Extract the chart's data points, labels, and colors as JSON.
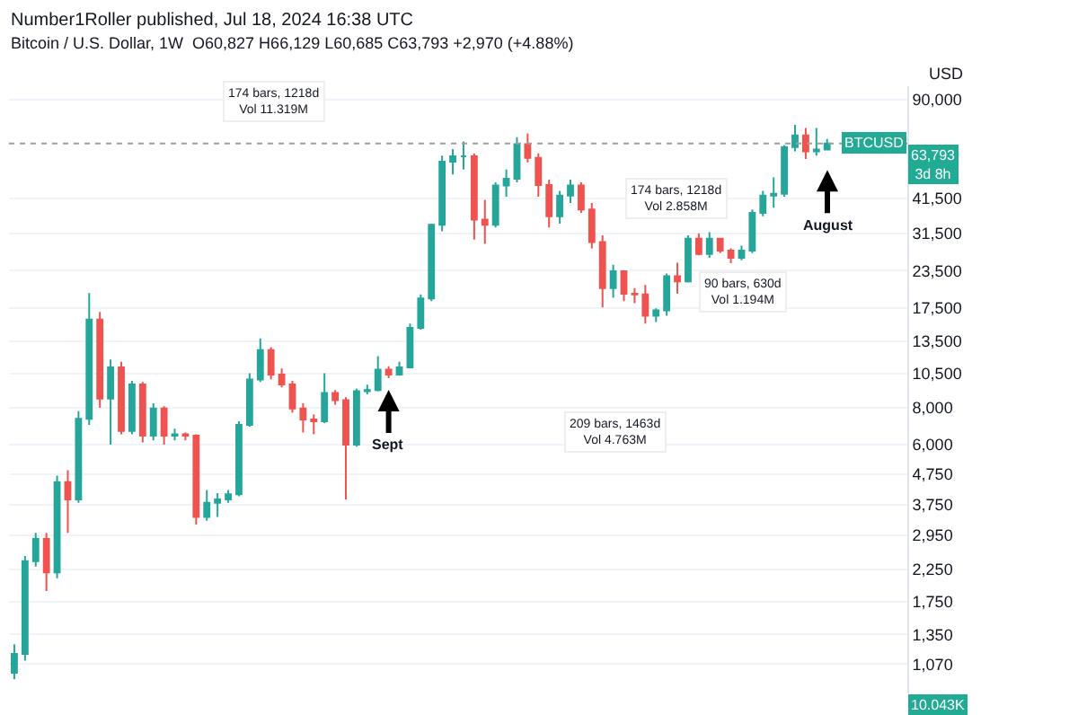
{
  "chart_data": {
    "type": "candlestick",
    "title": "Number1Roller published, Jul 18, 2024 16:38 UTC",
    "subtitle": "Bitcoin / U.S. Dollar, 1W  O60,827 H66,129 L60,685 C63,793 +2,970 (+4.88%)",
    "ylabel": "USD",
    "categories": [
      null,
      null,
      null,
      null,
      null,
      null,
      null,
      null,
      null,
      null,
      null,
      null,
      null,
      null,
      null,
      null,
      null,
      null,
      null,
      null,
      null,
      null,
      null,
      null,
      null,
      null,
      null,
      null,
      null,
      null,
      null,
      null,
      null,
      null,
      null,
      null,
      null,
      null,
      null,
      null,
      null,
      null,
      null,
      null,
      null,
      null,
      null,
      null,
      null,
      null,
      null,
      null,
      null,
      null,
      null,
      null,
      null,
      null,
      null,
      null,
      null,
      null,
      null,
      null,
      null,
      null,
      null,
      null,
      null,
      null,
      null,
      null,
      null,
      null,
      null,
      null,
      null
    ],
    "ohlc": [
      [
        1000,
        1250,
        950,
        1160
      ],
      [
        1160,
        2500,
        1100,
        2400
      ],
      [
        2400,
        3000,
        2300,
        2860
      ],
      [
        2860,
        3000,
        1900,
        2200
      ],
      [
        2200,
        4700,
        2100,
        4470
      ],
      [
        4470,
        4900,
        3000,
        3900
      ],
      [
        3900,
        7800,
        3800,
        7340
      ],
      [
        7340,
        19700,
        7000,
        16000
      ],
      [
        16000,
        17000,
        8000,
        8600
      ],
      [
        8600,
        11700,
        6000,
        11000
      ],
      [
        11000,
        11500,
        6500,
        6680
      ],
      [
        6680,
        9900,
        6500,
        9620
      ],
      [
        9620,
        9800,
        6100,
        6430
      ],
      [
        6430,
        8300,
        6200,
        7960
      ],
      [
        7960,
        8100,
        6000,
        6430
      ],
      [
        6430,
        6800,
        6200,
        6500
      ],
      [
        6500,
        6600,
        6200,
        6430
      ],
      [
        6430,
        6500,
        3200,
        3400
      ],
      [
        3400,
        4200,
        3300,
        3800
      ],
      [
        3800,
        4100,
        3400,
        3900
      ],
      [
        3900,
        4200,
        3800,
        4060
      ],
      [
        4060,
        7200,
        4000,
        7000
      ],
      [
        7000,
        10500,
        6900,
        10000
      ],
      [
        10000,
        13800,
        9800,
        12600
      ],
      [
        12600,
        12900,
        10000,
        10400
      ],
      [
        10400,
        10900,
        9400,
        9620
      ],
      [
        9620,
        9900,
        7700,
        7960
      ],
      [
        7960,
        8300,
        6600,
        7300
      ],
      [
        7300,
        7600,
        6500,
        7200
      ],
      [
        7200,
        10500,
        7100,
        9000
      ],
      [
        9000,
        9200,
        8200,
        8500
      ],
      [
        8500,
        8700,
        3900,
        6000
      ],
      [
        6000,
        9300,
        5900,
        9120
      ],
      [
        9120,
        9600,
        8900,
        9200
      ],
      [
        9200,
        12000,
        9100,
        10800
      ],
      [
        10800,
        11100,
        10100,
        10400
      ],
      [
        10400,
        11500,
        10300,
        11000
      ],
      [
        11000,
        15500,
        10900,
        15000
      ],
      [
        15000,
        19500,
        14800,
        18900
      ],
      [
        18900,
        34000,
        18500,
        33700
      ],
      [
        33700,
        58000,
        32000,
        55300
      ],
      [
        55300,
        61000,
        50000,
        57700
      ],
      [
        57700,
        64800,
        52000,
        57700
      ],
      [
        57700,
        59000,
        30000,
        35100
      ],
      [
        35100,
        41000,
        29000,
        33700
      ],
      [
        33700,
        47000,
        33000,
        45900
      ],
      [
        45900,
        52000,
        42000,
        48400
      ],
      [
        48400,
        67000,
        47000,
        63400
      ],
      [
        63400,
        69000,
        55000,
        57000
      ],
      [
        57000,
        59000,
        42000,
        46000
      ],
      [
        46000,
        48000,
        33000,
        36000
      ],
      [
        36000,
        44000,
        34000,
        42400
      ],
      [
        42400,
        48000,
        40000,
        45900
      ],
      [
        45900,
        47000,
        37000,
        38000
      ],
      [
        38000,
        40000,
        28000,
        29400
      ],
      [
        29400,
        31000,
        17600,
        20500
      ],
      [
        20500,
        24600,
        19000,
        23400
      ],
      [
        23400,
        23500,
        18500,
        19600
      ],
      [
        19600,
        20500,
        18200,
        19500
      ],
      [
        19500,
        21000,
        15500,
        16500
      ],
      [
        16500,
        17500,
        15700,
        17200
      ],
      [
        17200,
        23000,
        16500,
        22500
      ],
      [
        22500,
        25000,
        19600,
        21600
      ],
      [
        21600,
        31000,
        21400,
        30200
      ],
      [
        30200,
        31500,
        26500,
        26800
      ],
      [
        26800,
        31800,
        26000,
        30200
      ],
      [
        30200,
        30400,
        27000,
        27500
      ],
      [
        27500,
        28000,
        24900,
        26000
      ],
      [
        26000,
        28600,
        25500,
        27500
      ],
      [
        27500,
        38000,
        27000,
        37000
      ],
      [
        37000,
        44000,
        36000,
        42400
      ],
      [
        42400,
        48900,
        38500,
        43000
      ],
      [
        43000,
        63000,
        42000,
        62000
      ],
      [
        62000,
        73800,
        60000,
        68000
      ],
      [
        68000,
        72000,
        56500,
        60000
      ],
      [
        60000,
        72000,
        58000,
        60800
      ],
      [
        60827,
        66129,
        60685,
        63793
      ]
    ],
    "log": true,
    "ylim": [
      850,
      100000
    ],
    "yticks": [
      {
        "value": 1070,
        "label": "1,070"
      },
      {
        "value": 1350,
        "label": "1,350"
      },
      {
        "value": 1750,
        "label": "1,750"
      },
      {
        "value": 2250,
        "label": "2,250"
      },
      {
        "value": 2950,
        "label": "2,950"
      },
      {
        "value": 3750,
        "label": "3,750"
      },
      {
        "value": 4750,
        "label": "4,750"
      },
      {
        "value": 6000,
        "label": "6,000"
      },
      {
        "value": 8000,
        "label": "8,000"
      },
      {
        "value": 10500,
        "label": "10,500"
      },
      {
        "value": 13500,
        "label": "13,500"
      },
      {
        "value": 17500,
        "label": "17,500"
      },
      {
        "value": 23500,
        "label": "23,500"
      },
      {
        "value": 31500,
        "label": "31,500"
      },
      {
        "value": 41500,
        "label": "41,500"
      },
      {
        "value": 90000,
        "label": "90,000"
      }
    ],
    "tick_labels": "y",
    "grid": "y",
    "ref_lines": [
      {
        "axis": "y",
        "value": 63793,
        "label": "BTCUSD",
        "line_style": "dotted",
        "color": "#9e9e9e"
      }
    ],
    "annotations": [
      "174 bars, 1218d\nVol 11.319M",
      "174 bars, 1218d\nVol 2.858M",
      "90 bars, 630d\nVol 1.194M",
      "209 bars, 1463d\nVol 4.763M",
      "Sept",
      "August",
      "63,793\n3d 8h",
      "10.043K"
    ]
  }
}
